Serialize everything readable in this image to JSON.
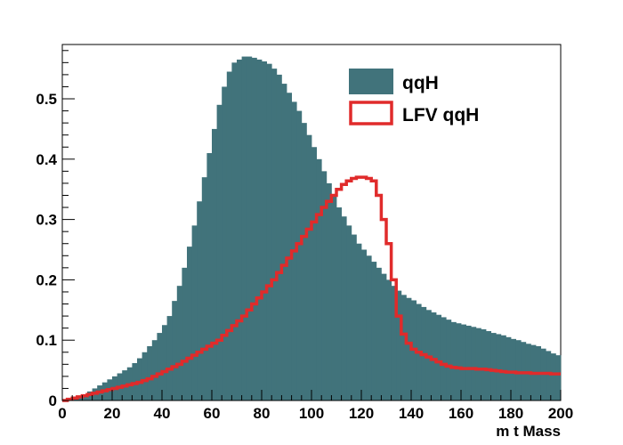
{
  "chart_data": {
    "type": "histogram",
    "xlabel": "m t Mass",
    "ylabel": "",
    "xlim": [
      0,
      200
    ],
    "ylim": [
      0,
      0.59
    ],
    "x_ticks": [
      0,
      20,
      40,
      60,
      80,
      100,
      120,
      140,
      160,
      180,
      200
    ],
    "y_ticks": [
      0,
      0.1,
      0.2,
      0.3,
      0.4,
      0.5
    ],
    "y_tick_labels": [
      "0",
      "0.1",
      "0.2",
      "0.3",
      "0.4",
      "0.5"
    ],
    "grid": false,
    "legend_position": "top-right",
    "bin_width": 2,
    "series": [
      {
        "name": "qqH",
        "style": "filled",
        "color": "#41737b",
        "values": [
          0.0,
          0.002,
          0.003,
          0.005,
          0.01,
          0.015,
          0.02,
          0.025,
          0.03,
          0.035,
          0.04,
          0.045,
          0.05,
          0.055,
          0.062,
          0.07,
          0.08,
          0.09,
          0.1,
          0.112,
          0.125,
          0.14,
          0.165,
          0.19,
          0.22,
          0.255,
          0.29,
          0.33,
          0.37,
          0.41,
          0.45,
          0.49,
          0.52,
          0.545,
          0.56,
          0.565,
          0.57,
          0.57,
          0.568,
          0.565,
          0.562,
          0.558,
          0.55,
          0.54,
          0.525,
          0.51,
          0.495,
          0.48,
          0.46,
          0.44,
          0.42,
          0.4,
          0.38,
          0.36,
          0.34,
          0.32,
          0.305,
          0.29,
          0.275,
          0.26,
          0.25,
          0.24,
          0.23,
          0.22,
          0.21,
          0.2,
          0.19,
          0.182,
          0.175,
          0.17,
          0.166,
          0.16,
          0.155,
          0.15,
          0.146,
          0.142,
          0.138,
          0.134,
          0.13,
          0.128,
          0.126,
          0.124,
          0.122,
          0.12,
          0.118,
          0.115,
          0.112,
          0.11,
          0.108,
          0.105,
          0.102,
          0.1,
          0.097,
          0.094,
          0.092,
          0.09,
          0.086,
          0.082,
          0.078,
          0.075
        ]
      },
      {
        "name": "LFV qqH",
        "style": "line",
        "color": "#e02b2b",
        "values": [
          0.0,
          0.002,
          0.004,
          0.006,
          0.008,
          0.01,
          0.012,
          0.014,
          0.016,
          0.018,
          0.02,
          0.022,
          0.024,
          0.026,
          0.028,
          0.03,
          0.033,
          0.036,
          0.04,
          0.044,
          0.048,
          0.052,
          0.056,
          0.06,
          0.065,
          0.07,
          0.075,
          0.08,
          0.085,
          0.09,
          0.095,
          0.1,
          0.108,
          0.116,
          0.124,
          0.132,
          0.14,
          0.15,
          0.16,
          0.17,
          0.18,
          0.19,
          0.2,
          0.212,
          0.224,
          0.236,
          0.248,
          0.26,
          0.272,
          0.284,
          0.296,
          0.308,
          0.32,
          0.33,
          0.34,
          0.35,
          0.358,
          0.364,
          0.368,
          0.37,
          0.37,
          0.368,
          0.364,
          0.34,
          0.3,
          0.26,
          0.2,
          0.14,
          0.11,
          0.095,
          0.085,
          0.08,
          0.076,
          0.072,
          0.068,
          0.064,
          0.06,
          0.057,
          0.055,
          0.054,
          0.053,
          0.053,
          0.053,
          0.052,
          0.052,
          0.051,
          0.05,
          0.049,
          0.048,
          0.047,
          0.047,
          0.046,
          0.046,
          0.046,
          0.045,
          0.045,
          0.045,
          0.045,
          0.044,
          0.044
        ]
      }
    ]
  }
}
